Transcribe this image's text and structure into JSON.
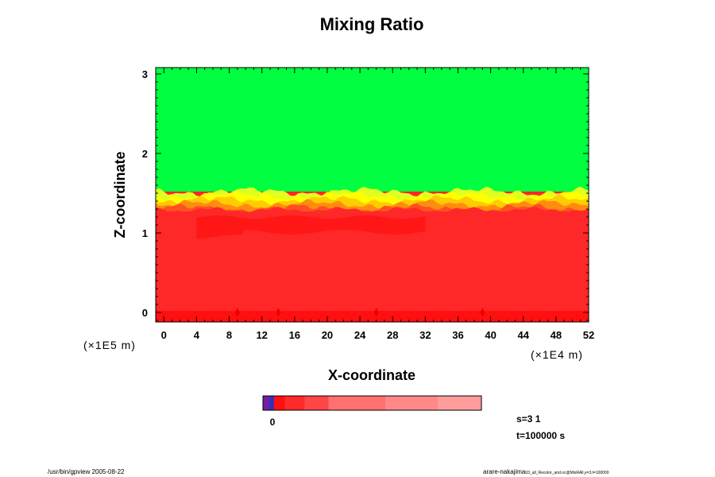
{
  "chart_data": {
    "type": "heatmap",
    "title": "Mixing Ratio",
    "xlabel": "X-coordinate",
    "ylabel": "Z-coordinate",
    "x_scale_note": "(×1E4 m)",
    "y_scale_note": "(×1E5 m)",
    "xlim": [
      -1,
      52
    ],
    "ylim": [
      -0.12,
      3.08
    ],
    "x_ticks": [
      "0",
      "4",
      "8",
      "12",
      "16",
      "20",
      "24",
      "28",
      "32",
      "36",
      "40",
      "44",
      "48",
      "52"
    ],
    "y_ticks": [
      "0",
      "1",
      "2",
      "3"
    ],
    "regions": [
      {
        "name": "upper",
        "color": "#00ff40",
        "z_range": [
          1.52,
          3.08
        ]
      },
      {
        "name": "interface",
        "colors": [
          "#e0ff20",
          "#ffff00",
          "#ffcc00",
          "#ff8c10",
          "#ff5020"
        ],
        "z_range": [
          1.33,
          1.52
        ]
      },
      {
        "name": "lower",
        "color": "#ff2828",
        "z_range": [
          -0.12,
          1.33
        ]
      }
    ],
    "colorbar": {
      "tick_label": "0",
      "colors": [
        "#7020a0",
        "#3030c0",
        "#ff1010",
        "#ff2a2a",
        "#ff4545",
        "#ff7070",
        "#ff8888",
        "#ff9c9c"
      ],
      "fractions": [
        0.03,
        0.02,
        0.05,
        0.09,
        0.11,
        0.26,
        0.24,
        0.2
      ]
    }
  },
  "info": {
    "s_label": "s=3 1",
    "t_label": "t=100000 s"
  },
  "footer": {
    "left": "/usr/bin/gpview 2005-08-22",
    "right_main": "arare-nakajima",
    "right_small": "03_all_Recolor_and.nc@MixRAll,y=3,t=100000"
  }
}
